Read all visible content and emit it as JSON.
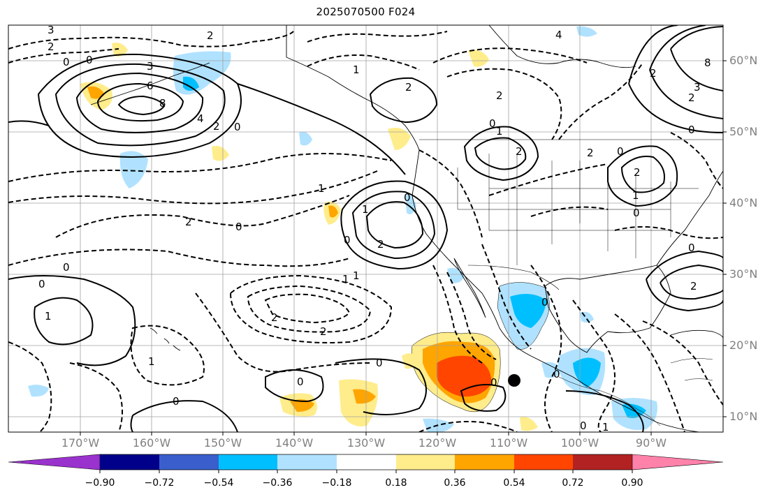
{
  "title": "2025070500 F024",
  "latitude_labels": [
    "60°N",
    "50°N",
    "40°N",
    "30°N",
    "20°N",
    "10°N"
  ],
  "longitude_labels": [
    "170°W",
    "160°W",
    "150°W",
    "140°W",
    "130°W",
    "120°W",
    "110°W",
    "100°W",
    "90°W"
  ],
  "colorbar": {
    "tick_labels": [
      "−0.90",
      "−0.72",
      "−0.54",
      "−0.36",
      "−0.18",
      "0.18",
      "0.36",
      "0.54",
      "0.72",
      "0.90"
    ],
    "colors": [
      "#9a32cd",
      "#00008b",
      "#3a5fcd",
      "#00bfff",
      "#b0e2ff",
      "#ffffff",
      "#ffec8b",
      "#ffa500",
      "#ff4500",
      "#b22222",
      "#ff82ab"
    ]
  },
  "contour_labels": [
    "3",
    "2",
    "0",
    "0",
    "3",
    "6",
    "4",
    "8",
    "2",
    "0",
    "2",
    "1",
    "2",
    "4",
    "0",
    "1",
    "2",
    "0",
    "2",
    "0",
    "2",
    "1",
    "1",
    "2",
    "0",
    "2",
    "0",
    "0",
    "2",
    "0",
    "2",
    "1",
    "0",
    "1",
    "2",
    "3",
    "0",
    "0",
    "1",
    "2",
    "1",
    "0",
    "0",
    "1",
    "0",
    "0",
    "0",
    "0",
    "1",
    "0",
    "2",
    "2",
    "8"
  ],
  "marker": {
    "name": "storm-center-dot",
    "color": "#000000"
  },
  "colors": {
    "coastline": "#000000",
    "grid": "#a0a0a0",
    "axis_text": "#808080"
  }
}
